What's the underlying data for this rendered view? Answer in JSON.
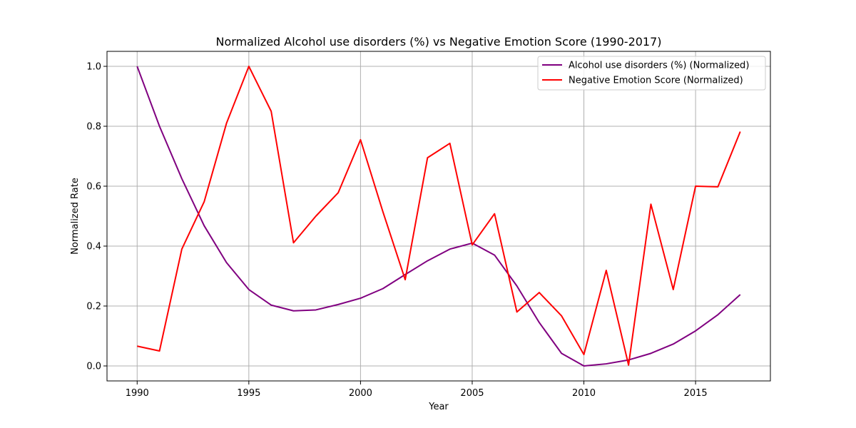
{
  "chart_data": {
    "type": "line",
    "title": "Normalized Alcohol use disorders (%) vs Negative Emotion Score (1990-2017)",
    "xlabel": "Year",
    "ylabel": "Normalized Rate",
    "xlim": [
      1988.65,
      2018.35
    ],
    "ylim": [
      -0.05,
      1.05
    ],
    "xticks": [
      1990,
      1995,
      2000,
      2005,
      2010,
      2015
    ],
    "yticks": [
      0.0,
      0.2,
      0.4,
      0.6,
      0.8,
      1.0
    ],
    "ytick_labels": [
      "0.0",
      "0.2",
      "0.4",
      "0.6",
      "0.8",
      "1.0"
    ],
    "grid": true,
    "legend_position": "top-right",
    "x": [
      1990,
      1991,
      1992,
      1993,
      1994,
      1995,
      1996,
      1997,
      1998,
      1999,
      2000,
      2001,
      2002,
      2003,
      2004,
      2005,
      2006,
      2007,
      2008,
      2009,
      2010,
      2011,
      2012,
      2013,
      2014,
      2015,
      2016,
      2017
    ],
    "series": [
      {
        "name": "Alcohol use disorders (%) (Normalized)",
        "color": "#800080",
        "values": [
          1.0,
          0.8,
          0.625,
          0.468,
          0.345,
          0.255,
          0.203,
          0.184,
          0.187,
          0.205,
          0.226,
          0.258,
          0.305,
          0.351,
          0.39,
          0.41,
          0.37,
          0.267,
          0.145,
          0.042,
          0.0,
          0.007,
          0.02,
          0.042,
          0.073,
          0.117,
          0.171,
          0.238
        ]
      },
      {
        "name": "Negative Emotion Score (Normalized)",
        "color": "#ff0000",
        "values": [
          0.066,
          0.05,
          0.39,
          0.548,
          0.81,
          1.0,
          0.85,
          0.411,
          0.5,
          0.578,
          0.755,
          0.515,
          0.288,
          0.695,
          0.743,
          0.404,
          0.508,
          0.18,
          0.245,
          0.167,
          0.038,
          0.319,
          0.003,
          0.54,
          0.255,
          0.6,
          0.598,
          0.782
        ]
      }
    ]
  }
}
